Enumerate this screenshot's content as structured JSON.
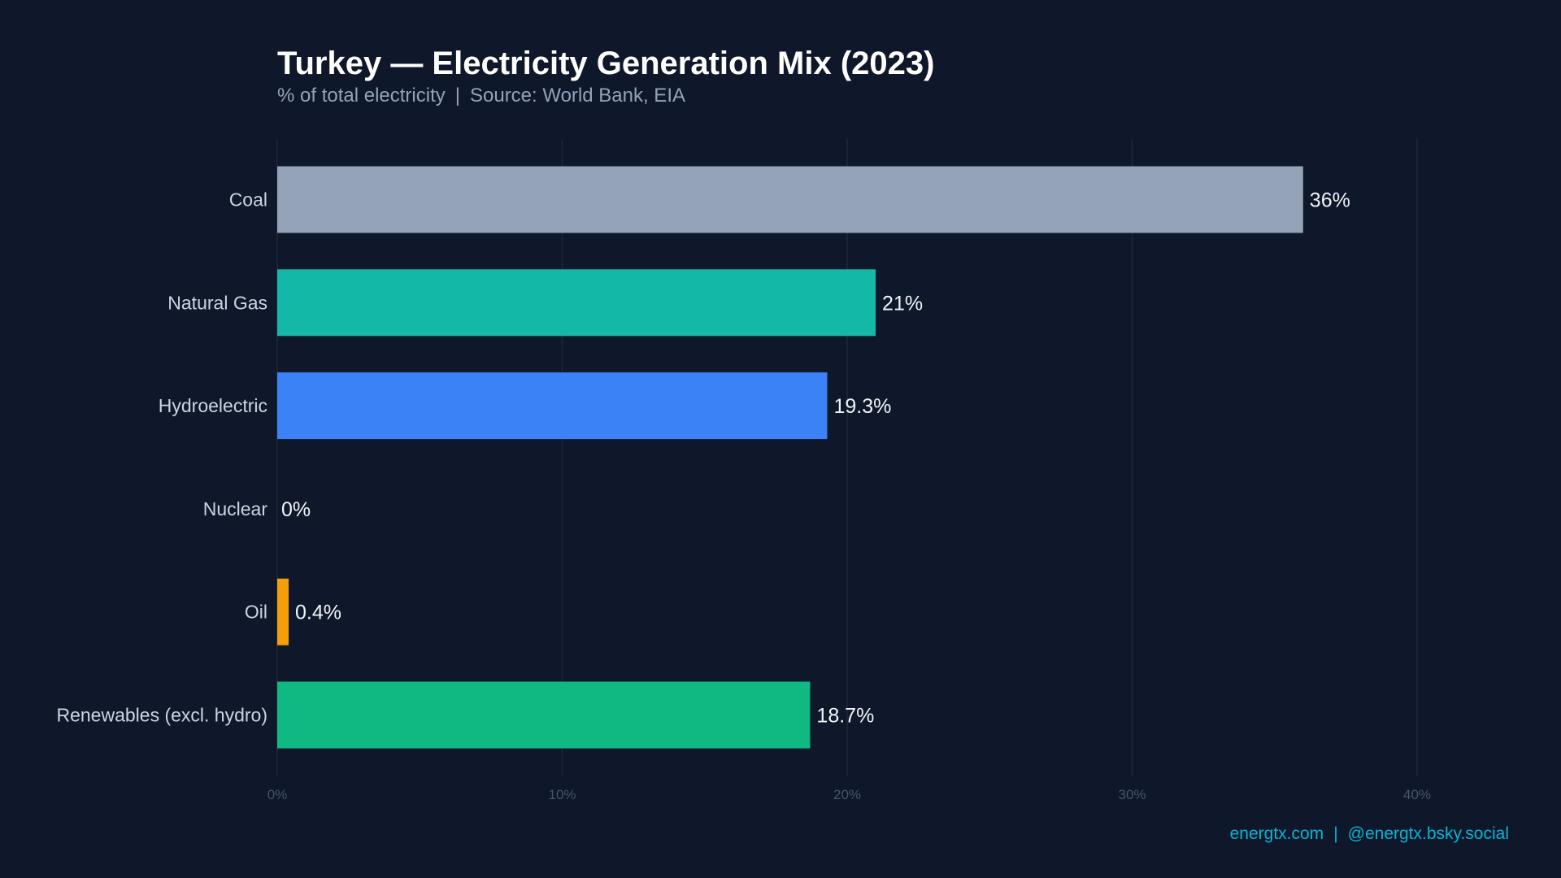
{
  "title": "Turkey — Electricity Generation Mix (2023)",
  "subtitle": {
    "unit": "% of total electricity",
    "separator": "|",
    "source": "Source: World Bank, EIA"
  },
  "footer": {
    "site": "energtx.com",
    "separator": "|",
    "social": "@energtx.bsky.social"
  },
  "chart_data": {
    "type": "bar",
    "orientation": "horizontal",
    "title": "Turkey — Electricity Generation Mix (2023)",
    "xlabel": "",
    "ylabel": "",
    "xlim": [
      0,
      40
    ],
    "xticks": [
      0,
      10,
      20,
      30,
      40
    ],
    "xtick_labels": [
      "0%",
      "10%",
      "20%",
      "30%",
      "40%"
    ],
    "grid": "vertical",
    "categories": [
      "Coal",
      "Natural Gas",
      "Hydroelectric",
      "Nuclear",
      "Oil",
      "Renewables (excl. hydro)"
    ],
    "values": [
      36,
      21,
      19.3,
      0,
      0.4,
      18.7
    ],
    "value_labels": [
      "36%",
      "21%",
      "19.3%",
      "0%",
      "0.4%",
      "18.7%"
    ],
    "colors": [
      "#94a3b8",
      "#14b8a6",
      "#3b82f6",
      "#ef4444",
      "#f59e0b",
      "#10b981"
    ]
  }
}
